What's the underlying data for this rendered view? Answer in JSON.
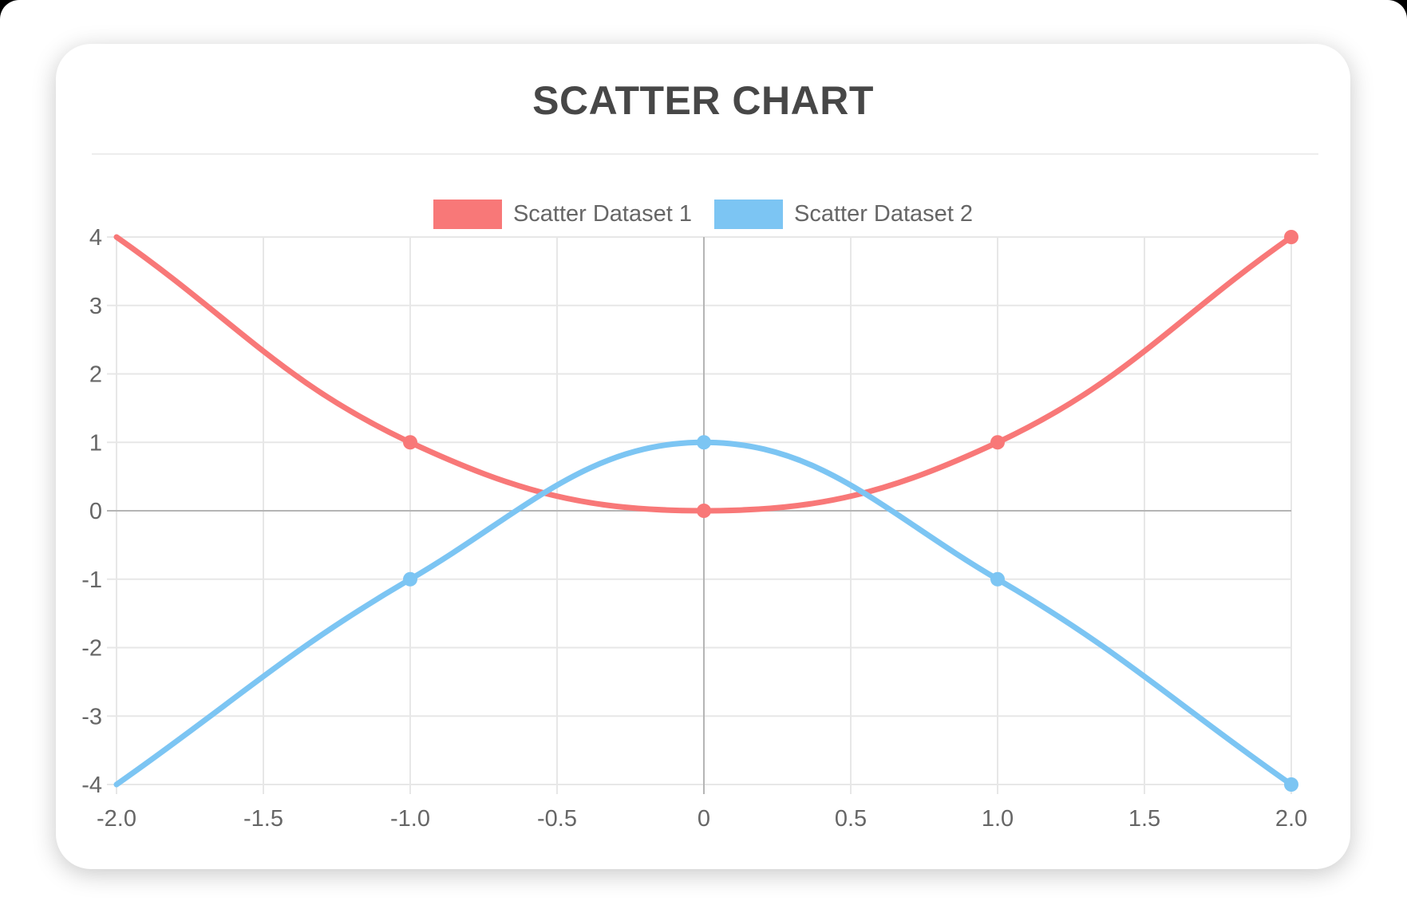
{
  "page": {
    "window_title": ""
  },
  "chart_data": {
    "type": "scatter",
    "title": "SCATTER CHART",
    "xlabel": "",
    "ylabel": "",
    "xlim": [
      -2,
      2
    ],
    "ylim": [
      -4,
      4
    ],
    "x_tick_values": [
      -2,
      -1.5,
      -1,
      -0.5,
      0,
      0.5,
      1,
      1.5,
      2
    ],
    "x_tick_labels": [
      "-2.0",
      "-1.5",
      "-1.0",
      "-0.5",
      "0",
      "0.5",
      "1.0",
      "1.5",
      "2.0"
    ],
    "y_tick_values": [
      4,
      3,
      2,
      1,
      0,
      -1,
      -2,
      -3,
      -4
    ],
    "y_tick_labels": [
      "4",
      "3",
      "2",
      "1",
      "0",
      "-1",
      "-2",
      "-3",
      "-4"
    ],
    "grid": true,
    "legend_position": "top",
    "line_tension": 0.4,
    "line_width": 7,
    "marker_radius": 9,
    "series": [
      {
        "name": "Scatter Dataset 1",
        "color": "#f87878",
        "points": [
          [
            -2,
            4
          ],
          [
            -1,
            1
          ],
          [
            0,
            0
          ],
          [
            1,
            1
          ],
          [
            2,
            4
          ]
        ],
        "markers_at_x": [
          -1,
          0,
          1,
          2
        ]
      },
      {
        "name": "Scatter Dataset 2",
        "color": "#7cc5f3",
        "points": [
          [
            -2,
            -4
          ],
          [
            -1,
            -1
          ],
          [
            0,
            1
          ],
          [
            1,
            -1
          ],
          [
            2,
            -4
          ]
        ],
        "markers_at_x": [
          -1,
          0,
          1,
          2
        ]
      }
    ],
    "colors": {
      "grid": "#e7e7e7",
      "zero_line": "#b5b5b5",
      "tick_text": "#666666",
      "title_text": "#474747"
    }
  }
}
